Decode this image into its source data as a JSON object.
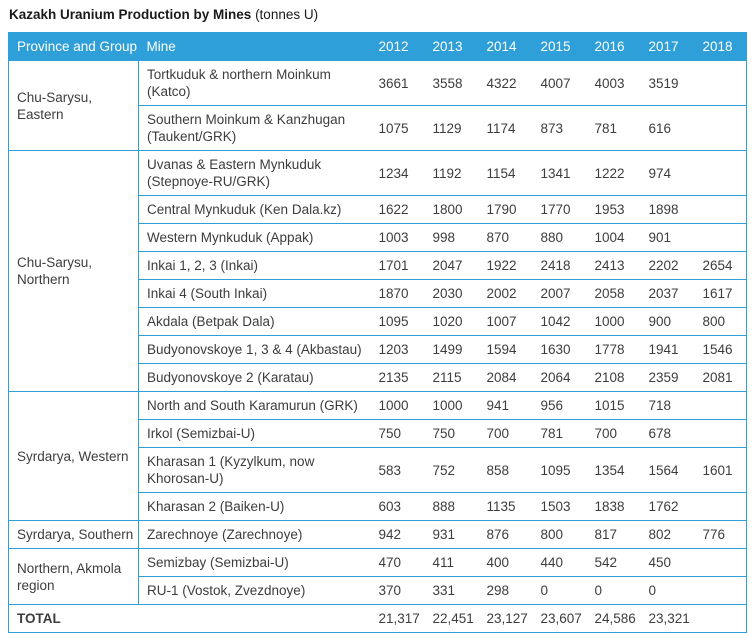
{
  "title": {
    "main": "Kazakh Uranium Production by Mines",
    "unit": "(tonnes U)"
  },
  "colors": {
    "accent": "#2e9fd8",
    "header_text": "#ffffff",
    "body_text": "#3d3d3d",
    "title_text": "#1a1a1a"
  },
  "table": {
    "col_headers": [
      "Province and Group",
      "Mine",
      "2012",
      "2013",
      "2014",
      "2015",
      "2016",
      "2017",
      "2018"
    ],
    "groups": [
      {
        "province": "Chu-Sarysu, Eastern",
        "rows": [
          {
            "mine": "Tortkuduk & northern Moinkum (Katco)",
            "values": [
              "3661",
              "3558",
              "4322",
              "4007",
              "4003",
              "3519",
              ""
            ]
          },
          {
            "mine": "Southern Moinkum & Kanzhugan (Taukent/GRK)",
            "values": [
              "1075",
              "1129",
              "1174",
              "873",
              "781",
              "616",
              ""
            ]
          }
        ]
      },
      {
        "province": "Chu-Sarysu, Northern",
        "rows": [
          {
            "mine": "Uvanas & Eastern Mynkuduk (Stepnoye-RU/GRK)",
            "values": [
              "1234",
              "1192",
              "1154",
              "1341",
              "1222",
              "974",
              ""
            ]
          },
          {
            "mine": "Central Mynkuduk (Ken Dala.kz)",
            "values": [
              "1622",
              "1800",
              "1790",
              "1770",
              "1953",
              "1898",
              ""
            ]
          },
          {
            "mine": "Western Mynkuduk (Appak)",
            "values": [
              "1003",
              "998",
              "870",
              "880",
              "1004",
              "901",
              ""
            ]
          },
          {
            "mine": "Inkai 1, 2, 3 (Inkai)",
            "values": [
              "1701",
              "2047",
              "1922",
              "2418",
              "2413",
              "2202",
              "2654"
            ]
          },
          {
            "mine": "Inkai 4 (South Inkai)",
            "values": [
              "1870",
              "2030",
              "2002",
              "2007",
              "2058",
              "2037",
              "1617"
            ]
          },
          {
            "mine": "Akdala (Betpak Dala)",
            "values": [
              "1095",
              "1020",
              "1007",
              "1042",
              "1000",
              "900",
              "800"
            ]
          },
          {
            "mine": "Budyonovskoye 1, 3 & 4 (Akbastau)",
            "values": [
              "1203",
              "1499",
              "1594",
              "1630",
              "1778",
              "1941",
              "1546"
            ]
          },
          {
            "mine": "Budyonovskoye 2 (Karatau)",
            "values": [
              "2135",
              "2115",
              "2084",
              "2064",
              "2108",
              "2359",
              "2081"
            ]
          }
        ]
      },
      {
        "province": "Syrdarya, Western",
        "rows": [
          {
            "mine": "North and South Karamurun (GRK)",
            "values": [
              "1000",
              "1000",
              "941",
              "956",
              "1015",
              "718",
              ""
            ]
          },
          {
            "mine": "Irkol (Semizbai-U)",
            "values": [
              "750",
              "750",
              "700",
              "781",
              "700",
              "678",
              ""
            ]
          },
          {
            "mine": "Kharasan 1 (Kyzylkum, now Khorosan-U)",
            "values": [
              "583",
              "752",
              "858",
              "1095",
              "1354",
              "1564",
              "1601"
            ]
          },
          {
            "mine": "Kharasan 2 (Baiken-U)",
            "values": [
              "603",
              "888",
              "1135",
              "1503",
              "1838",
              "1762",
              ""
            ]
          }
        ]
      },
      {
        "province": "Syrdarya, Southern",
        "rows": [
          {
            "mine": "Zarechnoye (Zarechnoye)",
            "values": [
              "942",
              "931",
              "876",
              "800",
              "817",
              "802",
              "776"
            ]
          }
        ]
      },
      {
        "province": "Northern, Akmola region",
        "rows": [
          {
            "mine": "Semizbay (Semizbai-U)",
            "values": [
              "470",
              "411",
              "400",
              "440",
              "542",
              "450",
              ""
            ]
          },
          {
            "mine": "RU-1 (Vostok, Zvezdnoye)",
            "values": [
              "370",
              "331",
              "298",
              "0",
              "0",
              "0",
              ""
            ]
          }
        ]
      }
    ],
    "total": {
      "label": "TOTAL",
      "values": [
        "21,317",
        "22,451",
        "23,127",
        "23,607",
        "24,586",
        "23,321",
        ""
      ]
    }
  }
}
